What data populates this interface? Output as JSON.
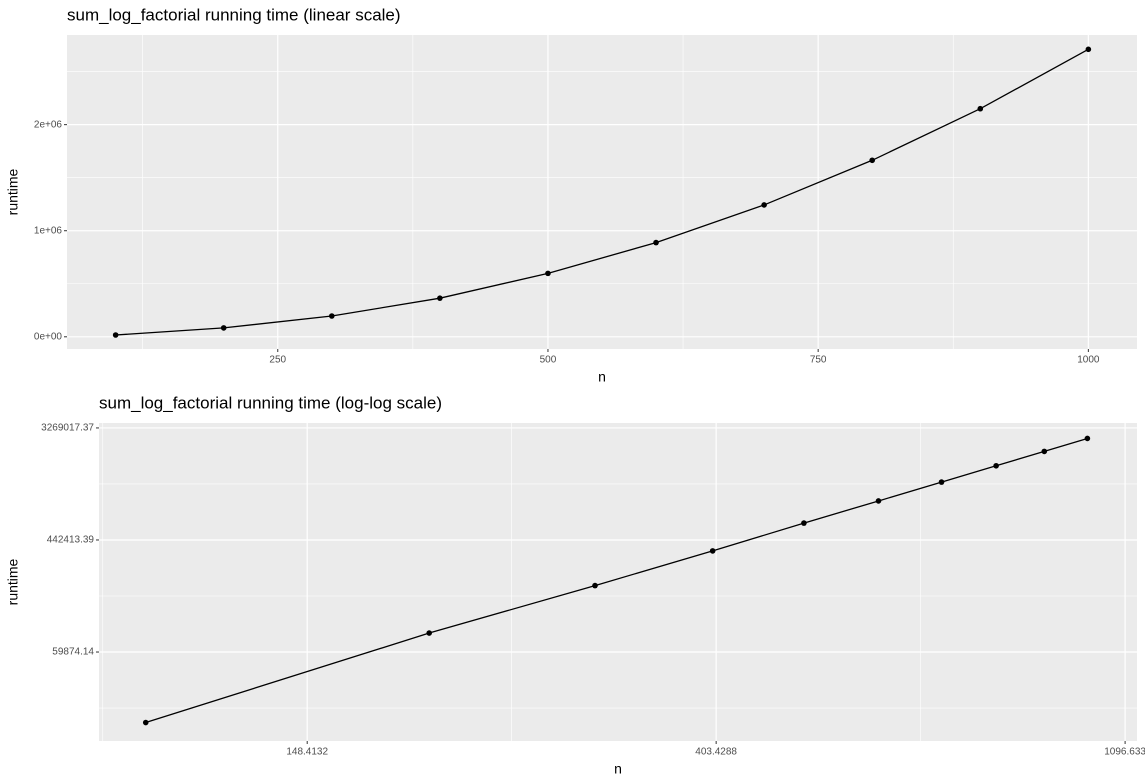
{
  "chart_data": [
    {
      "type": "line",
      "title": "sum_log_factorial running time (linear scale)",
      "x_label": "n",
      "y_label": "runtime",
      "x": [
        100,
        200,
        300,
        400,
        500,
        600,
        700,
        800,
        900,
        1000
      ],
      "values": [
        17000,
        84000,
        196000,
        364000,
        598000,
        888000,
        1243000,
        1664000,
        2150000,
        2710000
      ],
      "color": "#000000",
      "log": false,
      "grid": true,
      "xlim": [
        55,
        1045
      ],
      "xticks": [
        250,
        500,
        750,
        1000
      ],
      "ylim": [
        -115000,
        2845000
      ],
      "yticks": [
        {
          "value": 0,
          "label": "0e+00"
        },
        {
          "value": 1000000,
          "label": "1e+06"
        },
        {
          "value": 2000000,
          "label": "2e+06"
        }
      ]
    },
    {
      "type": "line",
      "title": "sum_log_factorial running time (log-log scale)",
      "x_label": "n",
      "y_label": "runtime",
      "x": [
        100,
        200,
        300,
        400,
        500,
        600,
        700,
        800,
        900,
        1000
      ],
      "values": [
        17000,
        84000,
        196000,
        364000,
        598000,
        888000,
        1243000,
        1664000,
        2150000,
        2710000
      ],
      "color": "#000000",
      "log": true,
      "grid": true,
      "xlim": [
        89.2,
        1129
      ],
      "xticks": [
        148.4132,
        403.4288,
        1096.633
      ],
      "ylim": [
        12230,
        3570000
      ],
      "yticks": [
        59874.14,
        442413.39,
        3269017.37
      ]
    }
  ]
}
